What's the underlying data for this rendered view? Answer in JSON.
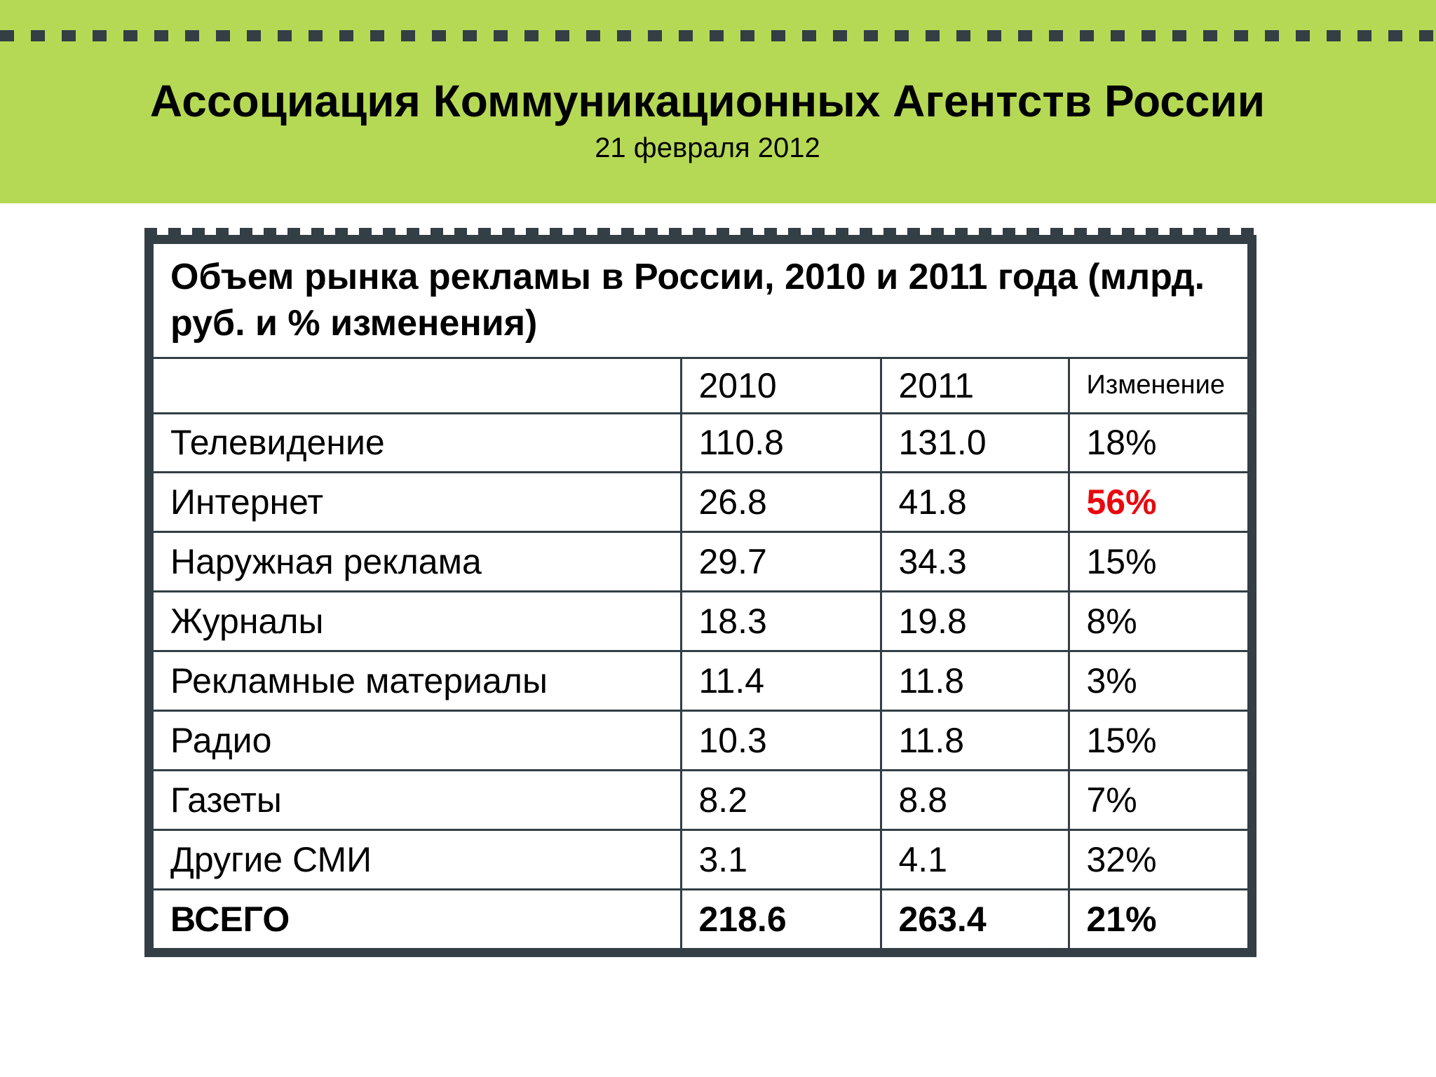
{
  "header": {
    "org_name": "Ассоциация Коммуникационных Агентств России",
    "date": "21 февраля 2012",
    "background_color": "#b6d955",
    "dash_color": "#333e45"
  },
  "table": {
    "title": "Объем рынка рекламы в России, 2010 и 2011 года (млрд. руб. и % изменения)",
    "columns": [
      "",
      "2010",
      "2011",
      "Изменение"
    ],
    "rows": [
      {
        "category": "Телевидение",
        "y2010": "110.8",
        "y2011": "131.0",
        "change": "18%"
      },
      {
        "category": "Интернет",
        "y2010": "26.8",
        "y2011": "41.8",
        "change": "56%"
      },
      {
        "category": "Наружная реклама",
        "y2010": "29.7",
        "y2011": "34.3",
        "change": "15%"
      },
      {
        "category": "Журналы",
        "y2010": "18.3",
        "y2011": "19.8",
        "change": "8%"
      },
      {
        "category": "Рекламные материалы",
        "y2010": "11.4",
        "y2011": "11.8",
        "change": "3%"
      },
      {
        "category": "Радио",
        "y2010": "10.3",
        "y2011": "11.8",
        "change": "15%"
      },
      {
        "category": "Газеты",
        "y2010": "8.2",
        "y2011": "8.8",
        "change": "7%"
      },
      {
        "category": "Другие СМИ",
        "y2010": "3.1",
        "y2011": "4.1",
        "change": "32%"
      }
    ],
    "total": {
      "category": "ВСЕГО",
      "y2010": "218.6",
      "y2011": "263.4",
      "change": "21%"
    },
    "highlight_color": "#e8090f",
    "frame_color": "#333e45"
  }
}
